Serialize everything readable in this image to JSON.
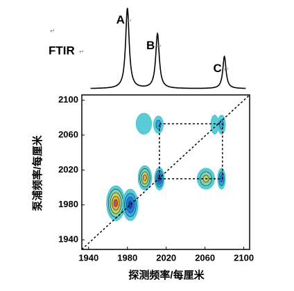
{
  "chart_data": [
    {
      "type": "line",
      "title": "FTIR",
      "return_mark": "↵",
      "color": "#000000",
      "xlim": [
        1933,
        2106
      ],
      "ylim": [
        0,
        1
      ],
      "xrange": [
        1942,
        2102
      ],
      "peaks": [
        {
          "label": "A",
          "x": 1980,
          "height": 1.0,
          "width": 2.2
        },
        {
          "label": "B",
          "x": 2011,
          "height": 0.68,
          "width": 2.2
        },
        {
          "label": "C",
          "x": 2080,
          "height": 0.4,
          "width": 2.0
        }
      ]
    },
    {
      "type": "contour",
      "xlabel": "探测频率/每厘米",
      "ylabel": "泵浦频率/每厘米",
      "xlim": [
        1933,
        2106
      ],
      "ylim": [
        1929,
        2106
      ],
      "xticks": [
        1940,
        1980,
        2020,
        2060,
        2100
      ],
      "yticks": [
        1940,
        1980,
        2020,
        2060,
        2100
      ],
      "positive_colors": [
        "#3cc3cf",
        "#8fd49a",
        "#d9d23c",
        "#f2a22e",
        "#e2401c"
      ],
      "negative_colors": [
        "#3cc3cf",
        "#2fa3e2",
        "#1f73d2",
        "#123f9e"
      ],
      "box": {
        "x": [
          2013,
          2078
        ],
        "y": [
          2010,
          2073
        ]
      },
      "peaks": [
        {
          "x": 1968,
          "y": 1982,
          "sx": 9.5,
          "sy": 20,
          "amp": 1.0
        },
        {
          "x": 1983,
          "y": 1980,
          "sx": 8,
          "sy": 18,
          "amp": -1.0
        },
        {
          "x": 1998,
          "y": 2011,
          "sx": 7,
          "sy": 14,
          "amp": 0.8
        },
        {
          "x": 2013,
          "y": 2010,
          "sx": 5,
          "sy": 13,
          "amp": -0.9
        },
        {
          "x": 2061,
          "y": 2010,
          "sx": 9,
          "sy": 12,
          "amp": 0.6
        },
        {
          "x": 2077,
          "y": 2010,
          "sx": 4,
          "sy": 12,
          "amp": -0.8
        },
        {
          "x": 1997,
          "y": 2073,
          "sx": 8,
          "sy": 12,
          "amp": 0.25
        },
        {
          "x": 2012,
          "y": 2072,
          "sx": 5,
          "sy": 10,
          "amp": -0.6
        },
        {
          "x": 2070,
          "y": 2072,
          "sx": 4,
          "sy": 11,
          "amp": 0.25
        },
        {
          "x": 2077,
          "y": 2072,
          "sx": 4,
          "sy": 11,
          "amp": -0.6
        }
      ]
    }
  ]
}
